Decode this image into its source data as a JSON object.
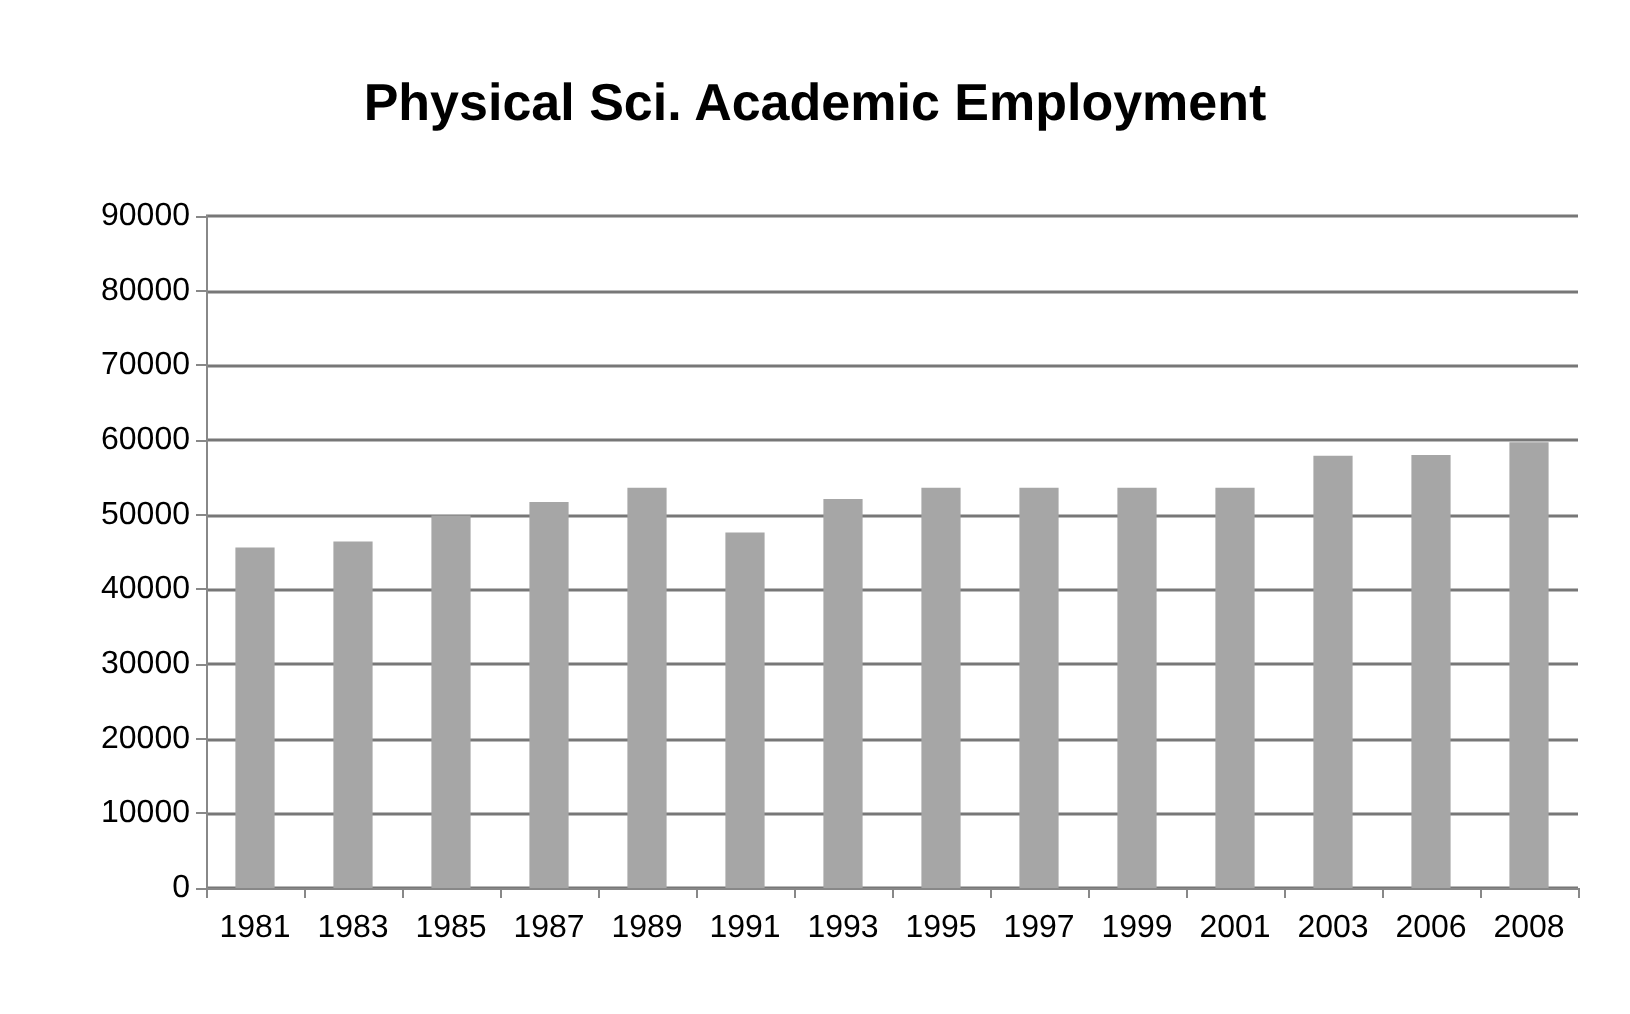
{
  "chart_data": {
    "type": "bar",
    "title": "Physical Sci. Academic Employment",
    "categories": [
      "1981",
      "1983",
      "1985",
      "1987",
      "1989",
      "1991",
      "1993",
      "1995",
      "1997",
      "1999",
      "2001",
      "2003",
      "2006",
      "2008"
    ],
    "values": [
      45600,
      46400,
      49900,
      51700,
      53600,
      47600,
      52100,
      53600,
      53600,
      53600,
      53600,
      57900,
      58000,
      59700
    ],
    "color": "#a6a6a6",
    "ylim": [
      0,
      90000
    ],
    "yticks": [
      0,
      10000,
      20000,
      30000,
      40000,
      50000,
      60000,
      70000,
      80000,
      90000
    ],
    "grid": "y"
  }
}
